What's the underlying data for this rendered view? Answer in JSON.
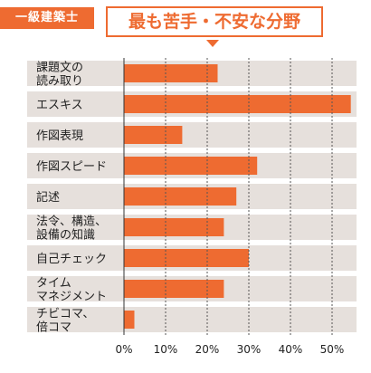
{
  "header": {
    "badge": "一級建築士",
    "title": "最も苦手・不安な分野"
  },
  "colors": {
    "accent": "#ee6b31",
    "band": "#e6e0dc",
    "grid": "#555555"
  },
  "chart_data": {
    "type": "bar",
    "orientation": "horizontal",
    "title": "最も苦手・不安な分野",
    "categories": [
      [
        "課題文の",
        "読み取り"
      ],
      [
        "エスキス"
      ],
      [
        "作図表現"
      ],
      [
        "作図スピード"
      ],
      [
        "記述"
      ],
      [
        "法令、構造、",
        "設備の知識"
      ],
      [
        "自己チェック"
      ],
      [
        "タイム",
        "マネジメント"
      ],
      [
        "チビコマ、",
        "倍コマ"
      ]
    ],
    "values": [
      22.5,
      54.5,
      14,
      32,
      27,
      24,
      30,
      24,
      2.5
    ],
    "unit": "%",
    "xlim": [
      0,
      55
    ],
    "xticks": [
      "0%",
      "10%",
      "20%",
      "30%",
      "40%",
      "50%"
    ],
    "grid": true
  }
}
